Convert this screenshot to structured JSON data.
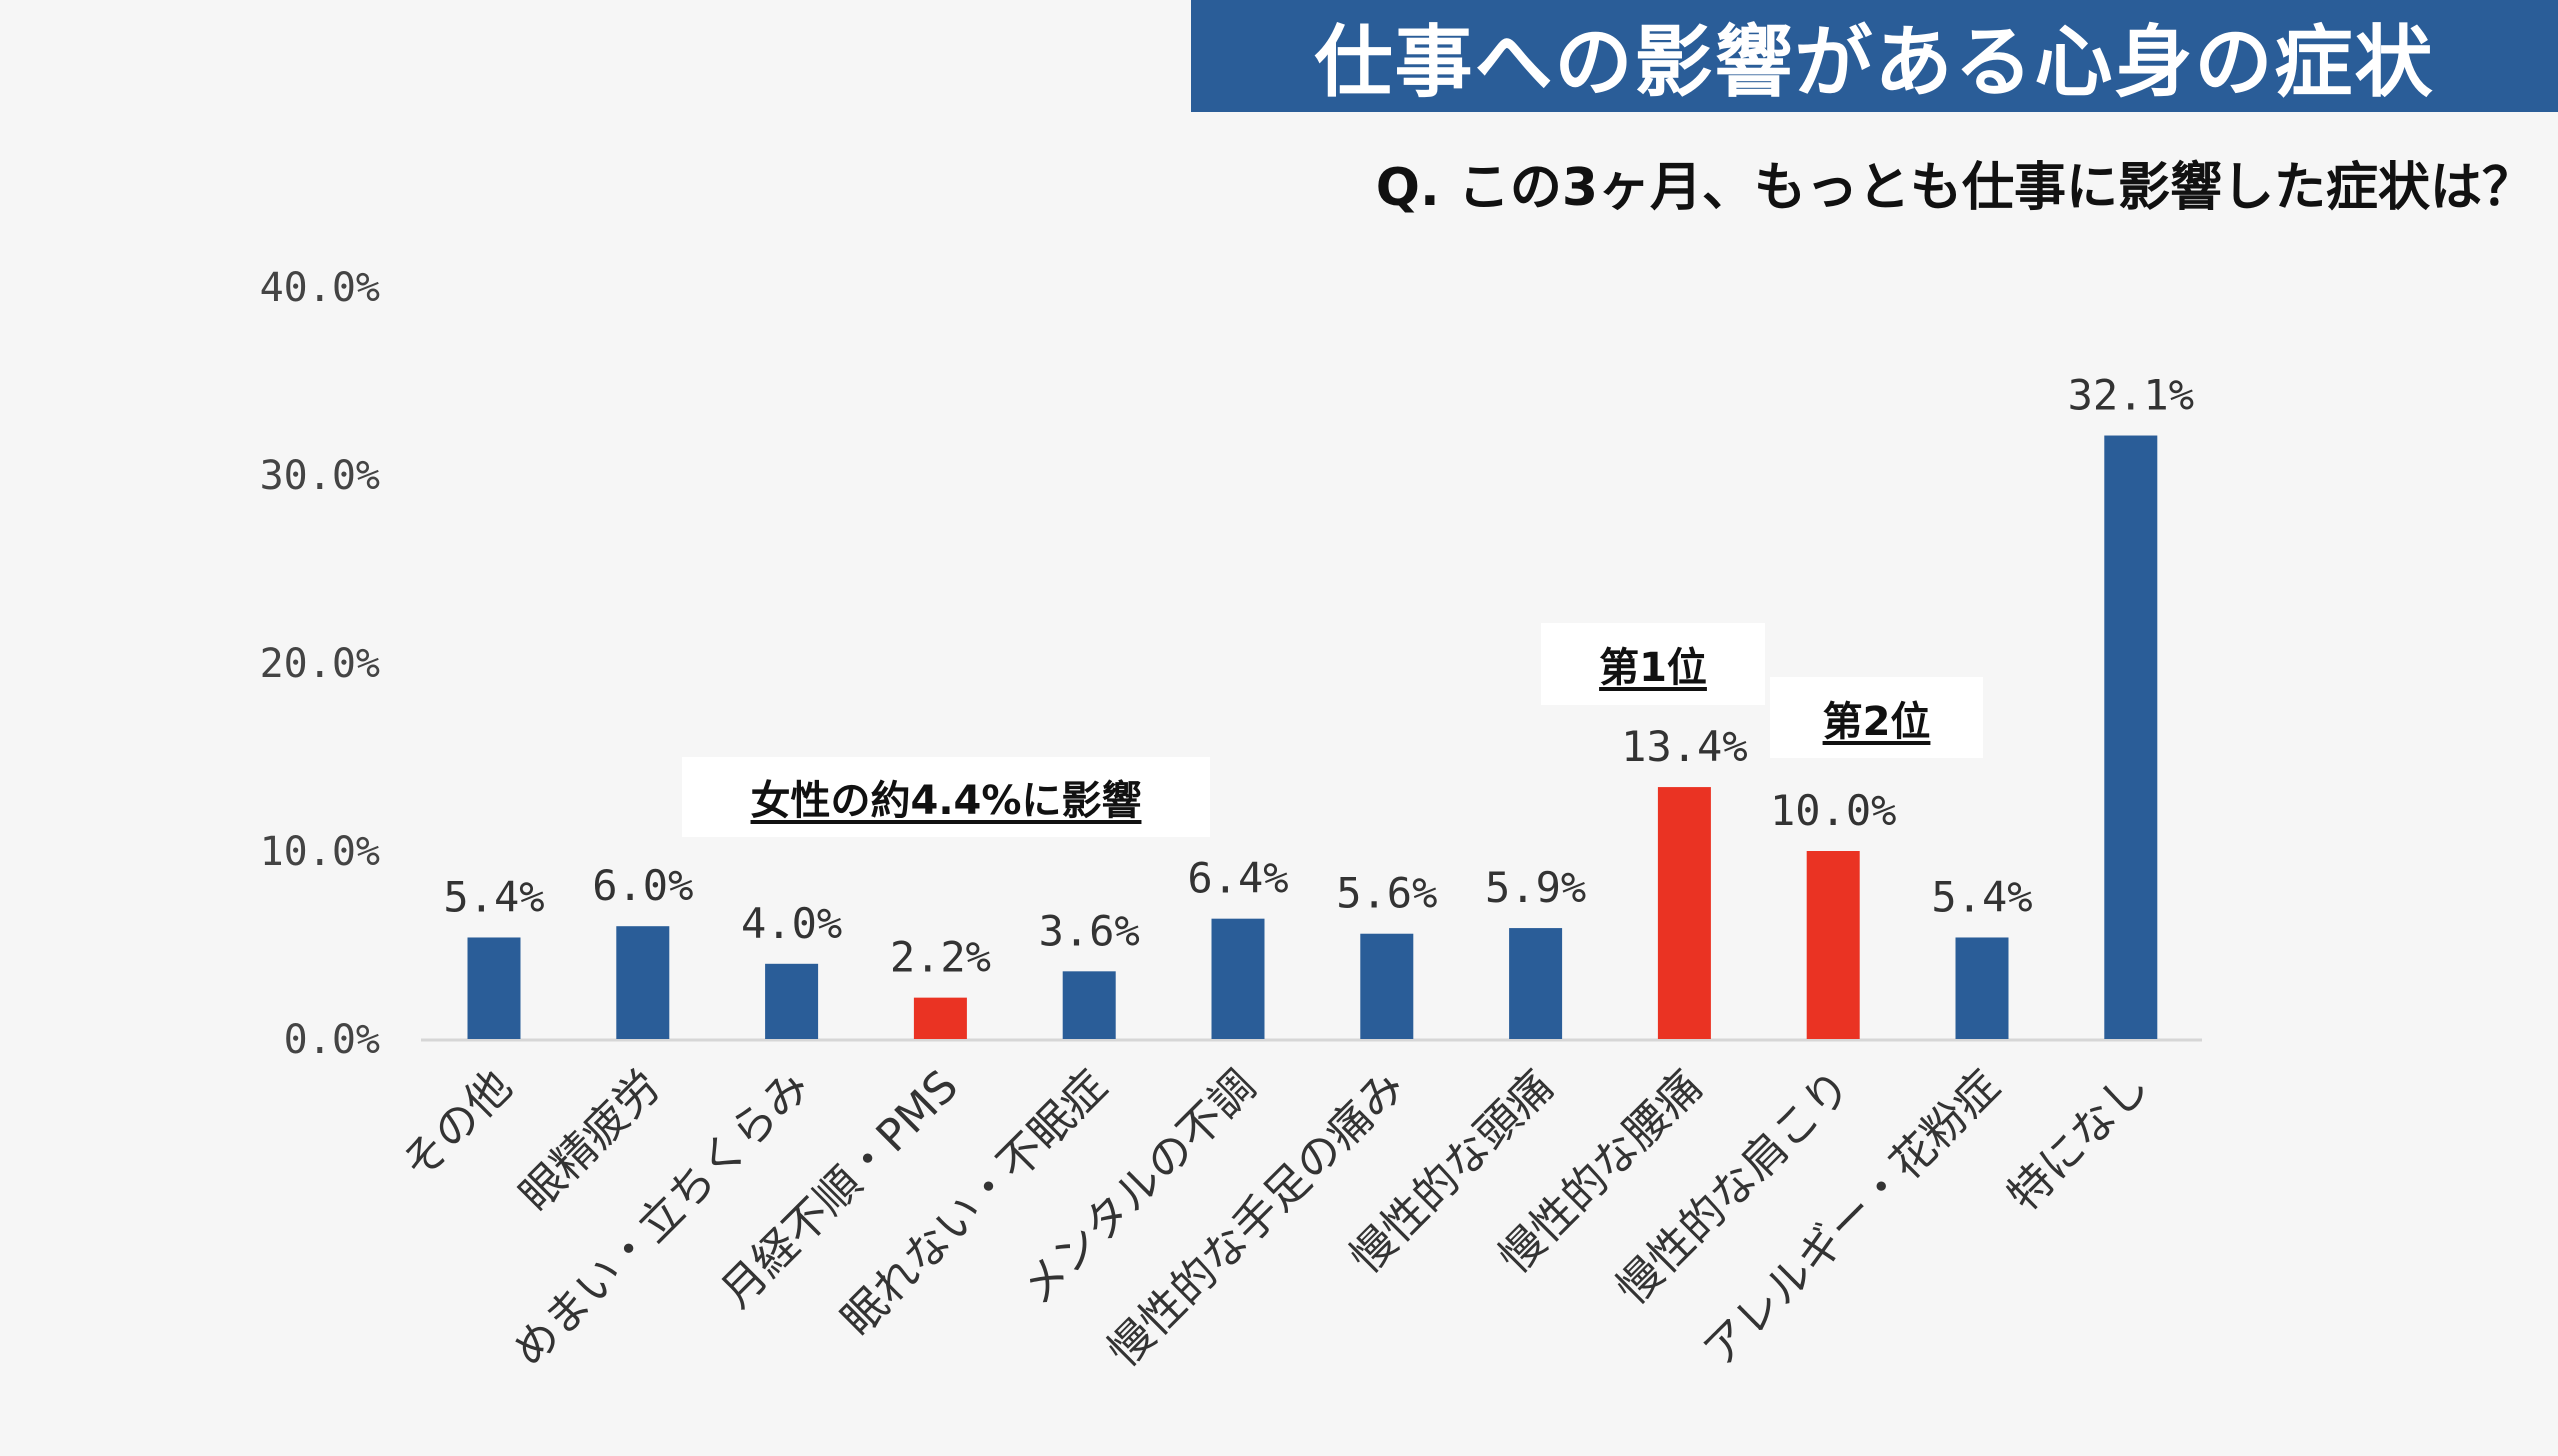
{
  "title": "仕事への影響がある心身の症状",
  "subtitle": "Q. この3ヶ月、もっとも仕事に影響した症状は？",
  "annotations": {
    "women": "女性の約4.4%に影響",
    "rank1": "第1位",
    "rank2": "第2位"
  },
  "colors": {
    "default_bar": "#2a5d98",
    "highlight_bar": "#ea3323",
    "title_bg": "#2a5d98",
    "background": "#f6f6f6"
  },
  "chart_data": {
    "type": "bar",
    "categories": [
      "その他",
      "眼精疲労",
      "めまい・立ちくらみ",
      "月経不順・PMS",
      "眠れない・不眠症",
      "メンタルの不調",
      "慢性的な手足の痛み",
      "慢性的な頭痛",
      "慢性的な腰痛",
      "慢性的な肩こり",
      "アレルギー・花粉症",
      "特になし"
    ],
    "values": [
      5.4,
      6.0,
      4.0,
      2.2,
      3.6,
      6.4,
      5.6,
      5.9,
      13.4,
      10.0,
      5.4,
      32.1
    ],
    "data_labels": [
      "5.4%",
      "6.0%",
      "4.0%",
      "2.2%",
      "3.6%",
      "6.4%",
      "5.6%",
      "5.9%",
      "13.4%",
      "10.0%",
      "5.4%",
      "32.1%"
    ],
    "highlighted": [
      false,
      false,
      false,
      true,
      false,
      false,
      false,
      false,
      true,
      true,
      false,
      false
    ],
    "ylim": [
      0,
      40
    ],
    "yticks": [
      "0.0%",
      "10.0%",
      "20.0%",
      "30.0%",
      "40.0%"
    ],
    "grid": false,
    "legend": "none"
  }
}
